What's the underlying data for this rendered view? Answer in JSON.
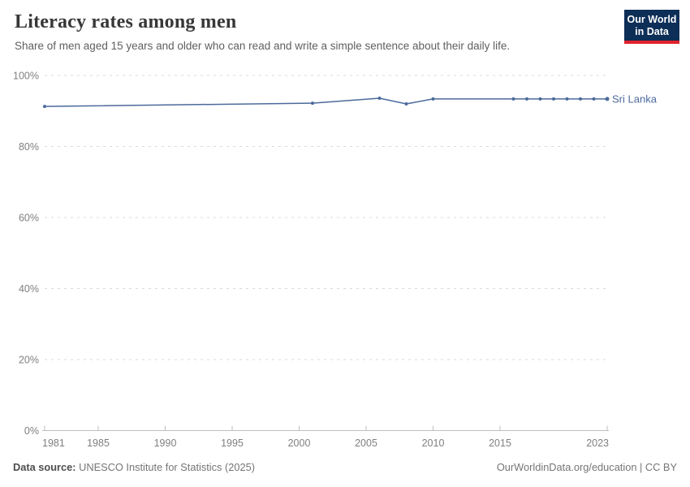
{
  "header": {
    "title": "Literacy rates among men",
    "subtitle": "Share of men aged 15 years and older who can read and write a simple sentence about their daily life."
  },
  "logo": {
    "line1": "Our World",
    "line2": "in Data",
    "bg_color": "#0d2e57",
    "accent_color": "#e0232e"
  },
  "chart_data": {
    "type": "line",
    "title": "Literacy rates among men",
    "xlabel": "",
    "ylabel": "",
    "xlim": [
      1981,
      2023
    ],
    "ylim": [
      0,
      100
    ],
    "x_ticks": [
      1981,
      1985,
      1990,
      1995,
      2000,
      2005,
      2010,
      2015,
      2023
    ],
    "y_ticks": [
      0,
      20,
      40,
      60,
      80,
      100
    ],
    "y_tick_suffix": "%",
    "grid": "horizontal-dashed",
    "legend_position": "end-of-line-label",
    "series": [
      {
        "name": "Sri Lanka",
        "color": "#4c6a9c",
        "points": [
          [
            1981,
            91.3
          ],
          [
            2001,
            92.2
          ],
          [
            2006,
            93.6
          ],
          [
            2008,
            92.0
          ],
          [
            2010,
            93.4
          ],
          [
            2016,
            93.4
          ],
          [
            2017,
            93.4
          ],
          [
            2018,
            93.4
          ],
          [
            2019,
            93.4
          ],
          [
            2020,
            93.4
          ],
          [
            2021,
            93.4
          ],
          [
            2022,
            93.4
          ],
          [
            2023,
            93.4
          ]
        ]
      }
    ]
  },
  "footer": {
    "source_label": "Data source:",
    "source_value": " UNESCO Institute for Statistics (2025)",
    "credit": "OurWorldinData.org/education | CC BY"
  },
  "colors": {
    "grid": "#d9d9d9",
    "axis": "#bfbfbf",
    "tick_label": "#7f7f7f"
  }
}
